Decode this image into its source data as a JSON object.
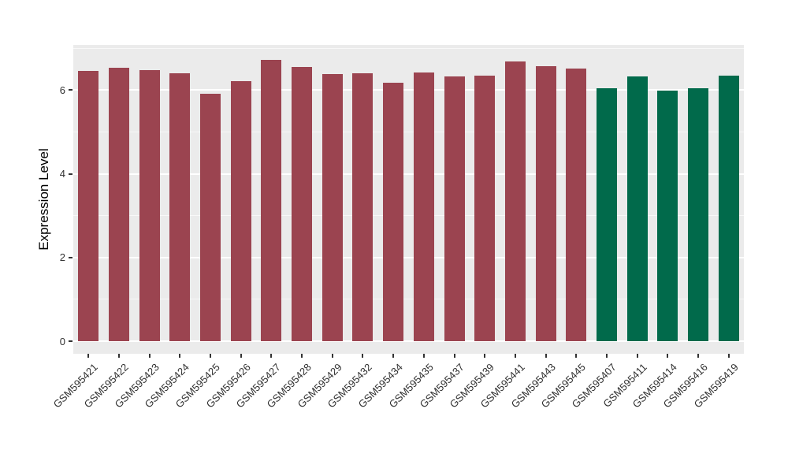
{
  "figure": {
    "background": "#FFFFFF"
  },
  "chart_data": {
    "type": "bar",
    "title": "",
    "xlabel": "",
    "ylabel": "Expression Level",
    "categories": [
      "GSM595421",
      "GSM595422",
      "GSM595423",
      "GSM595424",
      "GSM595425",
      "GSM595426",
      "GSM595427",
      "GSM595428",
      "GSM595429",
      "GSM595432",
      "GSM595434",
      "GSM595435",
      "GSM595437",
      "GSM595439",
      "GSM595441",
      "GSM595443",
      "GSM595445",
      "GSM595407",
      "GSM595411",
      "GSM595414",
      "GSM595416",
      "GSM595419"
    ],
    "values": [
      6.46,
      6.54,
      6.47,
      6.4,
      5.92,
      6.22,
      6.73,
      6.55,
      6.38,
      6.4,
      6.17,
      6.42,
      6.33,
      6.35,
      6.68,
      6.58,
      6.51,
      6.04,
      6.33,
      5.98,
      6.04,
      6.35
    ],
    "bar_groups": [
      "maroon",
      "maroon",
      "maroon",
      "maroon",
      "maroon",
      "maroon",
      "maroon",
      "maroon",
      "maroon",
      "maroon",
      "maroon",
      "maroon",
      "maroon",
      "maroon",
      "maroon",
      "maroon",
      "maroon",
      "green",
      "green",
      "green",
      "green",
      "green"
    ],
    "palette": {
      "maroon": "#9B4450",
      "green": "#016A4B"
    },
    "yticks_major": [
      0,
      2,
      4,
      6
    ],
    "yticks_minor": [
      1,
      3,
      5,
      7
    ],
    "ylim": [
      -0.34,
      7.05
    ],
    "grid": true,
    "legend": false,
    "panel_background": "#EBEBEB",
    "gridline_color": "#FFFFFF",
    "axis_text_color": "#303030"
  }
}
